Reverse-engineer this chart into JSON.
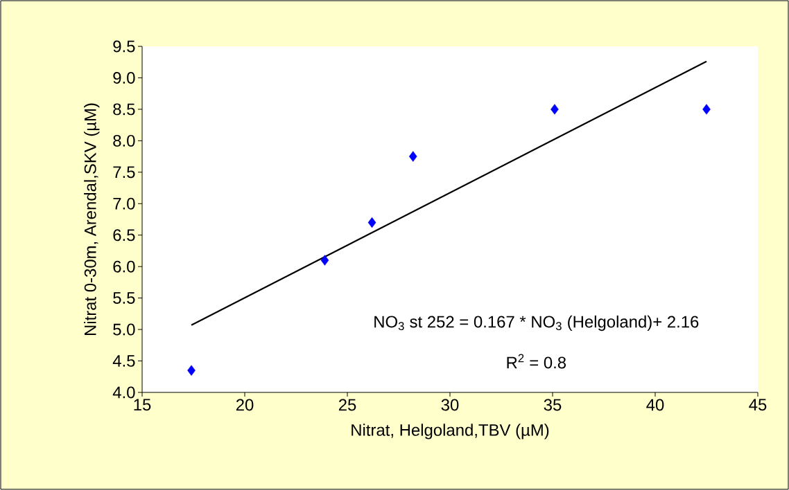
{
  "chart_data": {
    "type": "scatter",
    "xlabel": "Nitrat, Helgoland,TBV (µM)",
    "ylabel": "Nitrat 0-30m, Arendal,SKV (µM)",
    "xlim": [
      15,
      45
    ],
    "xticks": [
      15,
      20,
      25,
      30,
      35,
      40,
      45
    ],
    "ylim": [
      4.0,
      9.5
    ],
    "yticks": [
      {
        "value": 4,
        "label": "4.0"
      },
      {
        "value": 4.5,
        "label": "4.5"
      },
      {
        "value": 5,
        "label": "5.0"
      },
      {
        "value": 5.5,
        "label": "5.5"
      },
      {
        "value": 6,
        "label": "6.0"
      },
      {
        "value": 6.5,
        "label": "6.5"
      },
      {
        "value": 7,
        "label": "7.0"
      },
      {
        "value": 7.5,
        "label": "7.5"
      },
      {
        "value": 8,
        "label": "8.0"
      },
      {
        "value": 8.5,
        "label": "8.5"
      },
      {
        "value": 9,
        "label": "9.0"
      },
      {
        "value": 9.5,
        "label": "9.5"
      }
    ],
    "series": [
      {
        "color": "#0000ff",
        "marker": "diamond",
        "x": [
          17.4,
          23.9,
          26.2,
          28.2,
          35.1,
          42.5
        ],
        "values": [
          4.35,
          6.1,
          6.7,
          7.75,
          8.5,
          8.5
        ]
      },
      {
        "type": "line",
        "color": "#000000",
        "marker": "none",
        "line_style": "solid",
        "x": [
          17.4,
          42.5
        ],
        "values": [
          5.07,
          9.26
        ]
      }
    ],
    "annotations": [
      "NO$_{3}$ st 252 = 0.167 * NO$_{3}$ (Helgoland)+ 2.16",
      "R$^{2}$ = 0.8"
    ]
  }
}
